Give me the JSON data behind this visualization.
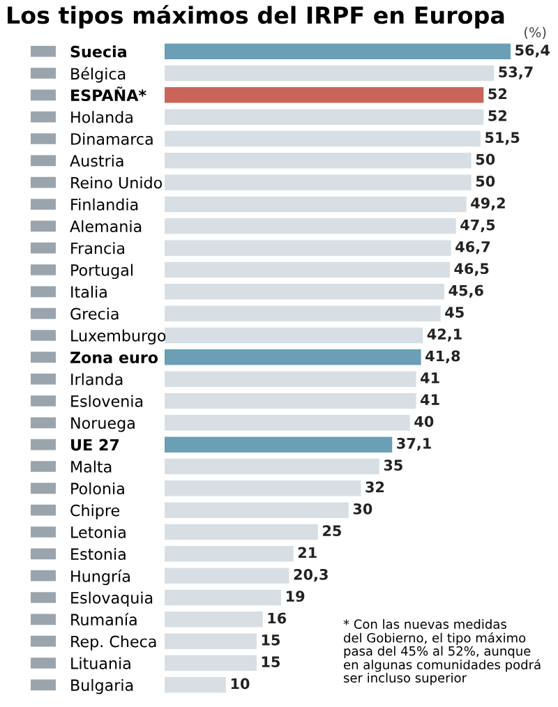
{
  "chart_data": {
    "type": "bar",
    "orientation": "horizontal",
    "title": "Los tipos máximos del IRPF en Europa",
    "categories": [
      "Suecia",
      "Bélgica",
      "ESPAÑA*",
      "Holanda",
      "Dinamarca",
      "Austria",
      "Reino Unido",
      "Finlandia",
      "Alemania",
      "Francia",
      "Portugal",
      "Italia",
      "Grecia",
      "Luxemburgo",
      "Zona euro",
      "Irlanda",
      "Eslovenia",
      "Noruega",
      "UE 27",
      "Malta",
      "Polonia",
      "Chipre",
      "Letonia",
      "Estonia",
      "Hungría",
      "Eslovaquia",
      "Rumanía",
      "Rep. Checa",
      "Lituania",
      "Bulgaria"
    ],
    "values": [
      56.4,
      53.7,
      52,
      52,
      51.5,
      50,
      50,
      49.2,
      47.5,
      46.7,
      46.5,
      45.6,
      45,
      42.1,
      41.8,
      41,
      41,
      40,
      37.1,
      35,
      32,
      30,
      25,
      21,
      20.3,
      19,
      16,
      15,
      15,
      10
    ],
    "value_labels": [
      "56,4",
      "53,7",
      "52",
      "52",
      "51,5",
      "50",
      "50",
      "49,2",
      "47,5",
      "46,7",
      "46,5",
      "45,6",
      "45",
      "42,1",
      "41,8",
      "41",
      "41",
      "40",
      "37,1",
      "35",
      "32",
      "30",
      "25",
      "21",
      "20,3",
      "19",
      "16",
      "15",
      "15",
      "10"
    ],
    "colors": [
      "#6a9fb5",
      "#d8dfe4",
      "#c8645a",
      "#d8dfe4",
      "#d8dfe4",
      "#d8dfe4",
      "#d8dfe4",
      "#d8dfe4",
      "#d8dfe4",
      "#d8dfe4",
      "#d8dfe4",
      "#d8dfe4",
      "#d8dfe4",
      "#d8dfe4",
      "#6a9fb5",
      "#d8dfe4",
      "#d8dfe4",
      "#d8dfe4",
      "#6a9fb5",
      "#d8dfe4",
      "#d8dfe4",
      "#d8dfe4",
      "#d8dfe4",
      "#d8dfe4",
      "#d8dfe4",
      "#d8dfe4",
      "#d8dfe4",
      "#d8dfe4",
      "#d8dfe4",
      "#d8dfe4"
    ],
    "annotations": [
      "(%)",
      "* Con las nuevas medidas\ndel Gobierno, el tipo máximo\npasa del 45% al 52%, aunque\nen algunas comunidades podrá\nser incluso superior"
    ]
  }
}
